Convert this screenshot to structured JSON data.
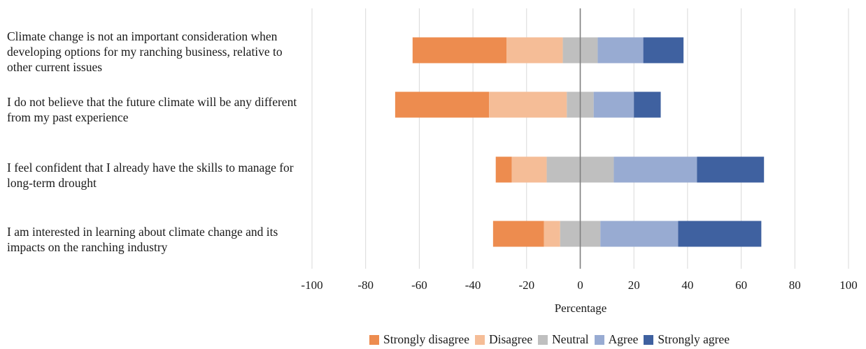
{
  "chart_data": {
    "type": "bar",
    "orientation": "horizontal",
    "stacked": "diverging",
    "xlabel": "Percentage",
    "xlim": [
      -100,
      100
    ],
    "x_ticks": [
      "-100",
      "-80",
      "-60",
      "-40",
      "-20",
      "0",
      "20",
      "40",
      "60",
      "80",
      "100"
    ],
    "grid": "vertical",
    "legend_position": "bottom",
    "categories": [
      "Climate change is not an important consideration when developing options for my ranching business, relative to other current issues",
      "I do not believe that the future climate will be any different from my past experience",
      "I feel confident that I already have the skills to manage for long-term drought",
      "I am interested in learning about climate change and its impacts on the ranching industry"
    ],
    "series": [
      {
        "name": "Strongly disagree",
        "color": "#ed8c4f",
        "side": "negative",
        "values": [
          35,
          35,
          6,
          19
        ]
      },
      {
        "name": "Disagree",
        "color": "#f5bd97",
        "side": "negative",
        "values": [
          21,
          29,
          13,
          6
        ]
      },
      {
        "name": "Neutral",
        "color": "#bfbfbf",
        "side": "split",
        "values": [
          13,
          10,
          25,
          15
        ]
      },
      {
        "name": "Agree",
        "color": "#98abd2",
        "side": "positive",
        "values": [
          17,
          15,
          31,
          29
        ]
      },
      {
        "name": "Strongly agree",
        "color": "#3f61a0",
        "side": "positive",
        "values": [
          15,
          10,
          25,
          31
        ]
      }
    ]
  }
}
